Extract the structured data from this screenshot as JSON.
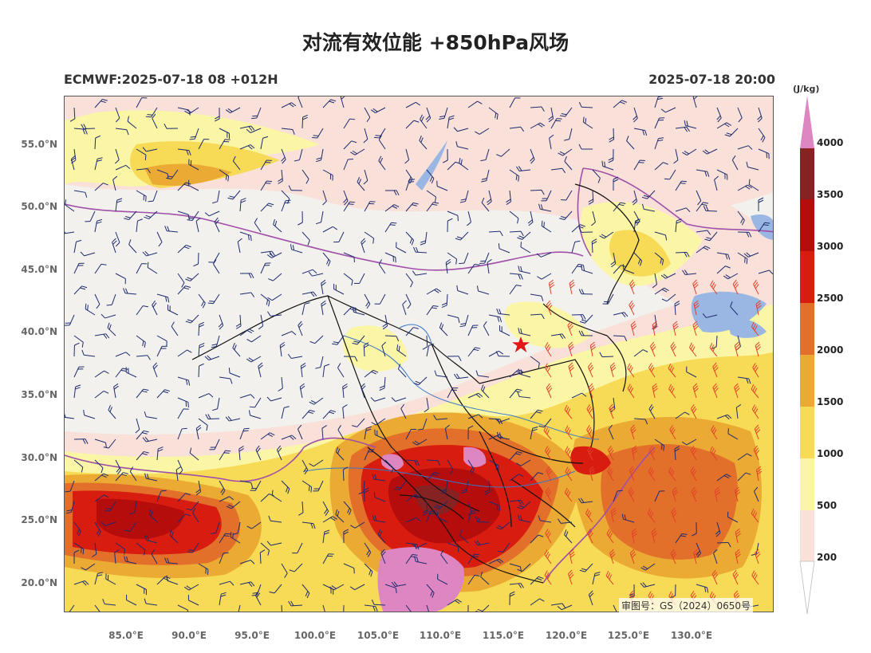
{
  "title": "对流有效位能 +850hPa风场",
  "subtitle_left": "ECMWF:2025-07-18 08 +012H",
  "subtitle_right": "2025-07-18 20:00",
  "latitude_labels": [
    "55.0°N",
    "50.0°N",
    "45.0°N",
    "40.0°N",
    "35.0°N",
    "30.0°N",
    "25.0°N",
    "20.0°N"
  ],
  "longitude_labels": [
    "85.0°E",
    "90.0°E",
    "95.0°E",
    "100.0°E",
    "105.0°E",
    "110.0°E",
    "115.0°E",
    "120.0°E",
    "125.0°E",
    "130.0°E"
  ],
  "watermark": "审图号：GS（2024）0650号",
  "colorbar": {
    "unit": "(J/kg)",
    "ticks": [
      "4000",
      "3500",
      "3000",
      "2500",
      "2000",
      "1500",
      "1000",
      "500",
      "200"
    ],
    "colors": {
      "c200": "#f9e0d8",
      "c500": "#fbf6a6",
      "c1000": "#f7db56",
      "c1500": "#ebaa33",
      "c2000": "#e2702a",
      "c2500": "#d91c10",
      "c3000": "#b50c0c",
      "c3500": "#862222",
      "c4000": "#de86c2"
    }
  },
  "map_colors": {
    "land": "#f3f1ee",
    "water": "#9ab6e3",
    "province_border": "#111111",
    "country_border": "#a050a8",
    "wind_barb": "#1d2b6e",
    "wind_barb_strong": "#e2402a",
    "marker": "#e01818"
  }
}
